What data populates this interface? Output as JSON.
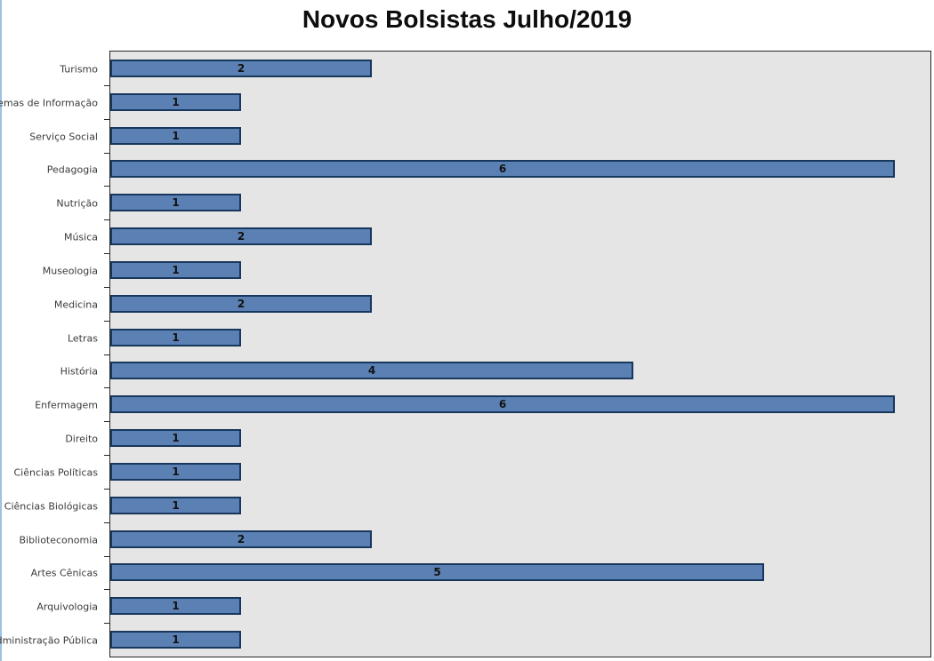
{
  "page": {
    "title": "Novos Bolsistas Julho/2019"
  },
  "chart_data": {
    "type": "bar",
    "orientation": "horizontal",
    "title": "Novos Bolsistas Julho/2019",
    "categories": [
      "Turismo",
      "Sistemas de Informação",
      "Serviço Social",
      "Pedagogia",
      "Nutrição",
      "Música",
      "Museologia",
      "Medicina",
      "Letras",
      "História",
      "Enfermagem",
      "Direito",
      "Ciências Políticas",
      "Ciências Biológicas",
      "Biblioteconomia",
      "Artes Cênicas",
      "Arquivologia",
      "Administração Pública"
    ],
    "categories_order": "top-to-bottom",
    "values": [
      2,
      1,
      1,
      6,
      1,
      2,
      1,
      2,
      1,
      4,
      6,
      1,
      1,
      1,
      2,
      5,
      1,
      1
    ],
    "xlabel": "",
    "ylabel": "",
    "xlim": [
      0,
      6.3
    ],
    "grid": false,
    "legend": false,
    "data_labels": "inside-center",
    "colors": {
      "bar_fill": "#5B80B4",
      "bar_border": "#17375D",
      "plot_background": "#E5E5E5",
      "plot_border": "#262626",
      "category_text": "#3B3B3B",
      "value_text": "#111111",
      "title_text": "#0D0D0D",
      "left_edge_line": "#9CC2E5"
    }
  }
}
